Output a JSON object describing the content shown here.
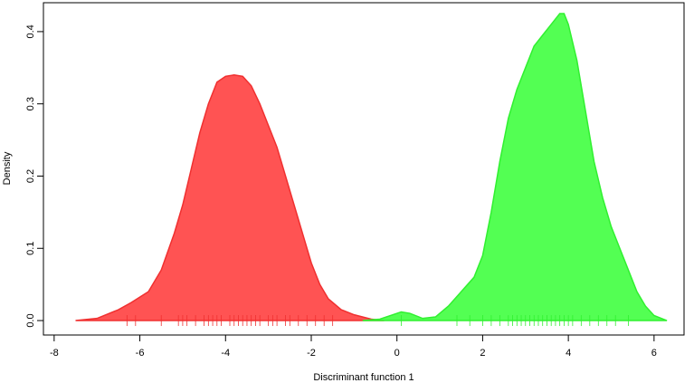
{
  "chart_data": {
    "type": "density",
    "xlabel": "Discriminant function 1",
    "ylabel": "Density",
    "xlim": [
      -8.25,
      6.7
    ],
    "ylim": [
      -0.02,
      0.44
    ],
    "xticks": [
      -8,
      -6,
      -4,
      -2,
      0,
      2,
      4,
      6
    ],
    "yticks": [
      {
        "value": 0,
        "label": "0.0"
      },
      0.1,
      0.2,
      0.3,
      0.4
    ],
    "series": [
      {
        "color": "#ff4a4a",
        "line_color": "#f03030",
        "x": [
          -7.5,
          -7,
          -6.5,
          -6.2,
          -5.8,
          -5.5,
          -5.2,
          -5,
          -4.8,
          -4.6,
          -4.4,
          -4.2,
          -4,
          -3.8,
          -3.6,
          -3.4,
          -3.2,
          -3,
          -2.8,
          -2.6,
          -2.4,
          -2.2,
          -2,
          -1.8,
          -1.6,
          -1.3,
          -1,
          -0.6,
          -0.3
        ],
        "y": [
          0,
          0.003,
          0.015,
          0.025,
          0.04,
          0.07,
          0.12,
          0.16,
          0.21,
          0.26,
          0.3,
          0.33,
          0.338,
          0.34,
          0.338,
          0.325,
          0.3,
          0.27,
          0.24,
          0.2,
          0.16,
          0.12,
          0.08,
          0.05,
          0.03,
          0.015,
          0.008,
          0.002,
          0
        ],
        "rug": [
          -6.3,
          -6.1,
          -5.5,
          -5.1,
          -5.0,
          -4.9,
          -4.7,
          -4.5,
          -4.4,
          -4.3,
          -4.2,
          -4.1,
          -3.9,
          -3.8,
          -3.7,
          -3.6,
          -3.5,
          -3.4,
          -3.3,
          -3.2,
          -3.0,
          -2.9,
          -2.8,
          -2.6,
          -2.5,
          -2.3,
          -2.1,
          -1.9,
          -1.7,
          -1.5
        ]
      },
      {
        "color": "#4aff4a",
        "line_color": "#30f030",
        "x": [
          -0.8,
          -0.4,
          -0.1,
          0.1,
          0.3,
          0.6,
          0.9,
          1.2,
          1.5,
          1.8,
          2,
          2.2,
          2.4,
          2.6,
          2.8,
          3,
          3.2,
          3.4,
          3.6,
          3.8,
          3.9,
          4,
          4.2,
          4.4,
          4.6,
          4.8,
          5,
          5.2,
          5.4,
          5.6,
          5.8,
          6,
          6.3
        ],
        "y": [
          0,
          0.002,
          0.008,
          0.012,
          0.01,
          0.003,
          0.005,
          0.02,
          0.04,
          0.06,
          0.09,
          0.15,
          0.22,
          0.28,
          0.32,
          0.35,
          0.38,
          0.395,
          0.41,
          0.425,
          0.425,
          0.41,
          0.36,
          0.29,
          0.22,
          0.17,
          0.13,
          0.1,
          0.07,
          0.04,
          0.02,
          0.007,
          0
        ],
        "rug": [
          0.1,
          1.4,
          1.7,
          2.0,
          2.2,
          2.4,
          2.6,
          2.7,
          2.8,
          2.9,
          3.0,
          3.1,
          3.2,
          3.3,
          3.4,
          3.5,
          3.6,
          3.7,
          3.8,
          3.9,
          4.0,
          4.1,
          4.3,
          4.5,
          4.7,
          4.9,
          5.1,
          5.4
        ]
      }
    ]
  }
}
